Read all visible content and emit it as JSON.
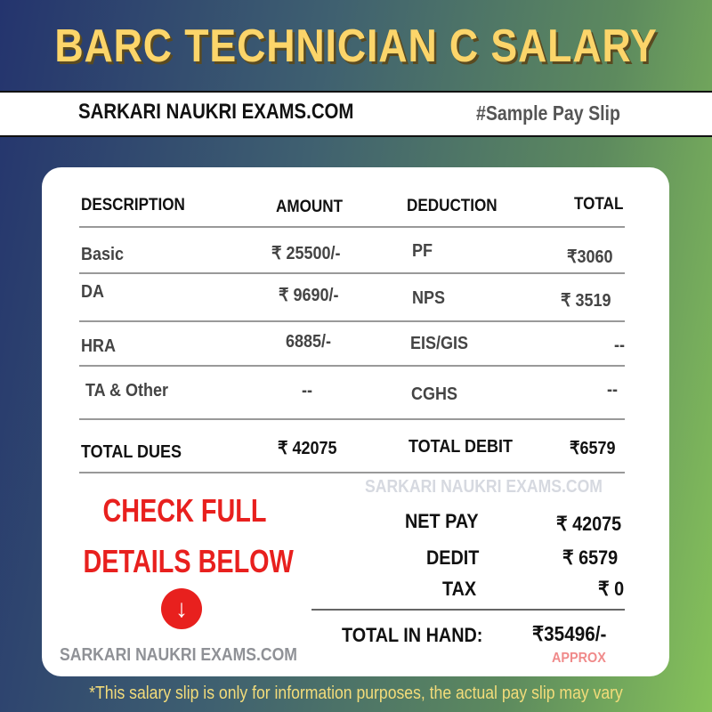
{
  "title": "BARC TECHNICIAN C SALARY",
  "site": "SARKARI NAUKRI EXAMS.COM",
  "tag": "#Sample Pay Slip",
  "table": {
    "headers": [
      "DESCRIPTION",
      "AMOUNT",
      "DEDUCTION",
      "TOTAL"
    ],
    "rows": [
      [
        "Basic",
        "₹ 25500/-",
        "PF",
        "₹3060"
      ],
      [
        "DA",
        "₹ 9690/-",
        "NPS",
        "₹ 3519"
      ],
      [
        "HRA",
        "6885/-",
        "EIS/GIS",
        "--"
      ],
      [
        "TA & Other",
        "--",
        "CGHS",
        "--"
      ]
    ],
    "totals": [
      "TOTAL DUES",
      "₹ 42075",
      "TOTAL DEBIT",
      "₹6579"
    ]
  },
  "watermark": "SARKARI NAUKRI EXAMS.COM",
  "cta": {
    "line1": "CHECK FULL",
    "line2": "DETAILS BELOW",
    "icon": "arrow-down-circle-icon"
  },
  "summary": {
    "net_pay_label": "NET PAY",
    "net_pay": "₹ 42075",
    "debit_label": "DEDIT",
    "debit": "₹ 6579",
    "tax_label": "TAX",
    "tax": "₹ 0",
    "in_hand_label": "TOTAL IN HAND:",
    "in_hand": "₹35496/-",
    "approx": "APPROX"
  },
  "footer_site": "SARKARI NAUKRI EXAMS.COM",
  "disclaimer": "*This salary slip is only for information purposes, the actual pay slip may vary",
  "colors": {
    "title": "#fcd56a",
    "cta": "#e8201e",
    "approx": "#f08a8a"
  }
}
